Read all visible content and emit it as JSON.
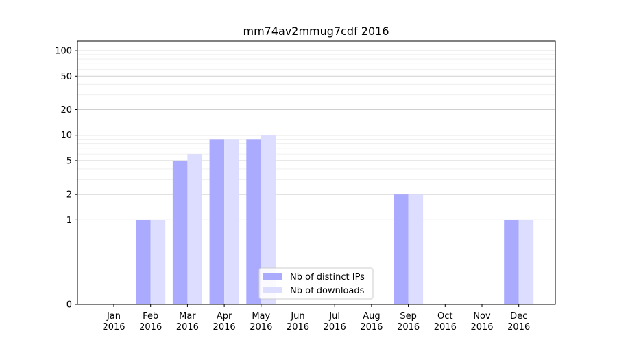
{
  "chart_data": {
    "type": "bar",
    "title": "mm74av2mmug7cdf 2016",
    "xlabel": "",
    "ylabel": "",
    "y_scale": "symlog",
    "ylim": [
      0,
      130
    ],
    "y_ticks": [
      0,
      1,
      2,
      5,
      10,
      20,
      50,
      100
    ],
    "grid": true,
    "legend_position": "bottom-center",
    "categories": [
      "Jan\n2016",
      "Feb\n2016",
      "Mar\n2016",
      "Apr\n2016",
      "May\n2016",
      "Jun\n2016",
      "Jul\n2016",
      "Aug\n2016",
      "Sep\n2016",
      "Oct\n2016",
      "Nov\n2016",
      "Dec\n2016"
    ],
    "series": [
      {
        "name": "Nb of distinct IPs",
        "color": "#aaaaff",
        "values": [
          0,
          1,
          5,
          9,
          9,
          0,
          0,
          0,
          2,
          0,
          0,
          1
        ]
      },
      {
        "name": "Nb of downloads",
        "color": "#ddddff",
        "values": [
          0,
          1,
          6,
          9,
          10,
          0,
          0,
          0,
          2,
          0,
          0,
          1
        ]
      }
    ]
  }
}
